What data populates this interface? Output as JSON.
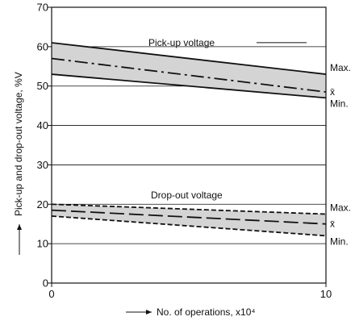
{
  "chart_data": {
    "type": "line",
    "xlabel": "No. of operations, x10⁴",
    "ylabel": "Pick-up and drop-out voltage, %V",
    "xlim": [
      0,
      10
    ],
    "ylim": [
      0,
      70
    ],
    "x_ticks": [
      0,
      10
    ],
    "y_ticks": [
      0,
      10,
      20,
      30,
      40,
      50,
      60,
      70
    ],
    "grid": "horizontal",
    "band_fill": "#d4d4d4",
    "line_color": "#111111",
    "groups": [
      {
        "label": "Pick-up voltage",
        "series": [
          {
            "name": "Max.",
            "style": "solid",
            "x": [
              0,
              10
            ],
            "y": [
              61,
              53
            ]
          },
          {
            "name": "x̄",
            "style": "dash-dot",
            "x": [
              0,
              10
            ],
            "y": [
              57,
              48.5
            ]
          },
          {
            "name": "Min.",
            "style": "solid",
            "x": [
              0,
              10
            ],
            "y": [
              53,
              47
            ]
          }
        ]
      },
      {
        "label": "Drop-out voltage",
        "series": [
          {
            "name": "Max.",
            "style": "dashed",
            "x": [
              0,
              10
            ],
            "y": [
              20,
              17.5
            ]
          },
          {
            "name": "x̄",
            "style": "long-dash",
            "x": [
              0,
              10
            ],
            "y": [
              18.5,
              15
            ]
          },
          {
            "name": "Min.",
            "style": "dashed",
            "x": [
              0,
              10
            ],
            "y": [
              17,
              12
            ]
          }
        ]
      }
    ]
  }
}
